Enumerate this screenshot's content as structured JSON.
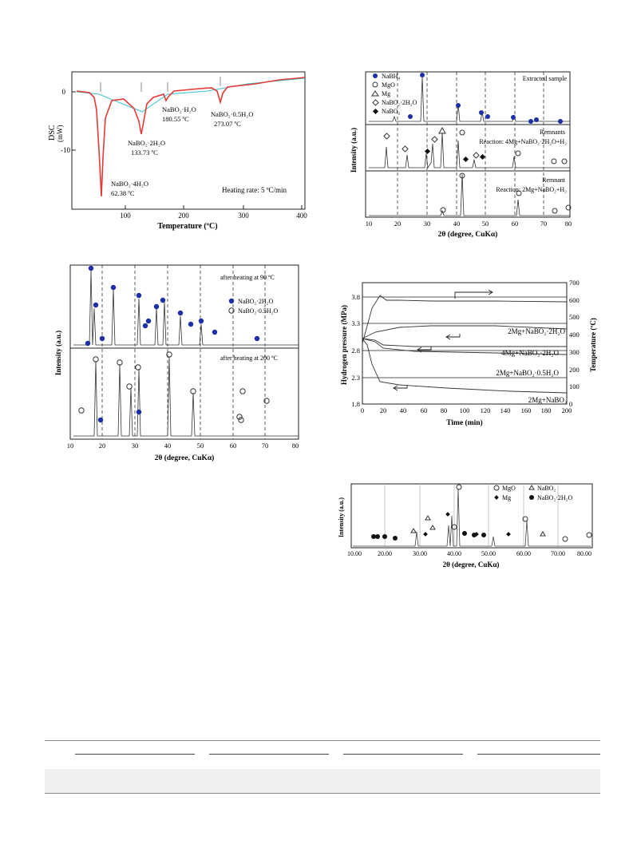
{
  "fig_a": {
    "ylabel": "DSC",
    "yunit": "(mW)",
    "xlabel": "Temperature (ºC)",
    "xticks": [
      "100",
      "200",
      "300",
      "400"
    ],
    "yticks": [
      "0",
      "-10"
    ],
    "heating_rate": "Heating rate: 5 ºC/min",
    "peaks": [
      {
        "species": "NaBO₂·4H₂O",
        "temp": "62.38 ºC"
      },
      {
        "species": "NaBO₂·2H₂O",
        "temp": "133.73 ºC"
      },
      {
        "species": "NaBO₂·H₂O",
        "temp": "180.55 ºC"
      },
      {
        "species": "NaBO₂·0.5H₂O",
        "temp": "273.07 ºC"
      }
    ]
  },
  "fig_b": {
    "ylabel": "Intensity (a.u.)",
    "xlabel": "2θ (degree, CuKα)",
    "xticks": [
      "10",
      "20",
      "30",
      "40",
      "50",
      "60",
      "70",
      "80"
    ],
    "legend": [
      "NaBH₄",
      "MgO",
      "Mg",
      "NaBO₂·2H₂O",
      "NaBO₂"
    ],
    "labels": {
      "top": "Extracted sample",
      "mid1": "Remnants",
      "mid2": "Reaction: 4Mg+NaBO₂·2H₂O+H₂",
      "bot1": "Remnant",
      "bot2": "Reaction: 2Mg+NaBO₂+H₂"
    }
  },
  "fig_c": {
    "ylabel": "Intensity (a.u.)",
    "xlabel": "2θ (degree, CuKα)",
    "xticks": [
      "10",
      "20",
      "30",
      "40",
      "50",
      "60",
      "70",
      "80"
    ],
    "top_label": "after heating at 90 ºC",
    "bottom_label": "after heating at 200 ºC",
    "legend": [
      "NaBO₂·2H₂O",
      "NaBO₂·0.5H₂O"
    ]
  },
  "fig_d": {
    "ylabel_left": "Hydrogen pressure (MPa)",
    "ylabel_right": "Temperature (ºC)",
    "xlabel": "Time (min)",
    "xticks": [
      "0",
      "20",
      "40",
      "60",
      "80",
      "100",
      "120",
      "140",
      "160",
      "180",
      "200"
    ],
    "yticks_left": [
      "1.8",
      "2.3",
      "2.8",
      "3.3",
      "3.8"
    ],
    "yticks_right": [
      "0",
      "100",
      "200",
      "300",
      "400",
      "500",
      "600",
      "700"
    ],
    "curves": [
      "2Mg+NaBO₂·2H₂O",
      "4Mg+NaBO₂·2H₂O",
      "2Mg+NaBO₂·0.5H₂O",
      "2Mg+NaBO₂"
    ]
  },
  "fig_e": {
    "ylabel": "Intensity (a.u.)",
    "xlabel": "2θ (degree, CuKα)",
    "xticks": [
      "10.00",
      "20.00",
      "30.00",
      "40.00",
      "50.00",
      "60.00",
      "70.00",
      "80.00"
    ],
    "legend": [
      "MgO",
      "NaBO₂",
      "Mg",
      "NaBO₂·2H₂O"
    ]
  }
}
